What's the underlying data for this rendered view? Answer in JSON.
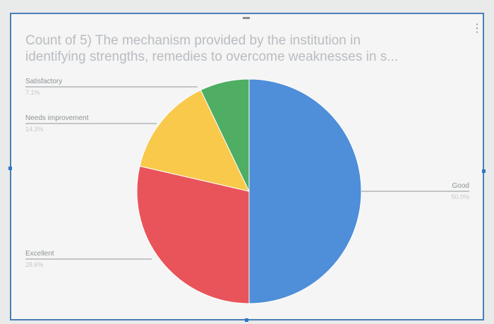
{
  "title": {
    "line1": "Count of 5) The mechanism provided by the institution in",
    "line2": "identifying strengths, remedies to overcome weaknesses in s..."
  },
  "chart_data": {
    "type": "pie",
    "title": "Count of 5) The mechanism provided by the institution in identifying strengths, remedies to overcome weaknesses in s...",
    "legend": "none",
    "slices": [
      {
        "label": "Good",
        "value": 50.0,
        "color": "#4f8ed8"
      },
      {
        "label": "Excellent",
        "value": 28.6,
        "color": "#e8545a"
      },
      {
        "label": "Needs improvement",
        "value": 14.3,
        "color": "#f8c94b"
      },
      {
        "label": "Satisfactory",
        "value": 7.1,
        "color": "#4fae63"
      }
    ]
  },
  "colors": {
    "frame": "#4a7fb6",
    "label_line": "#8f9398",
    "label_text": "#8f9398",
    "percent_text": "#c4c7cc"
  }
}
